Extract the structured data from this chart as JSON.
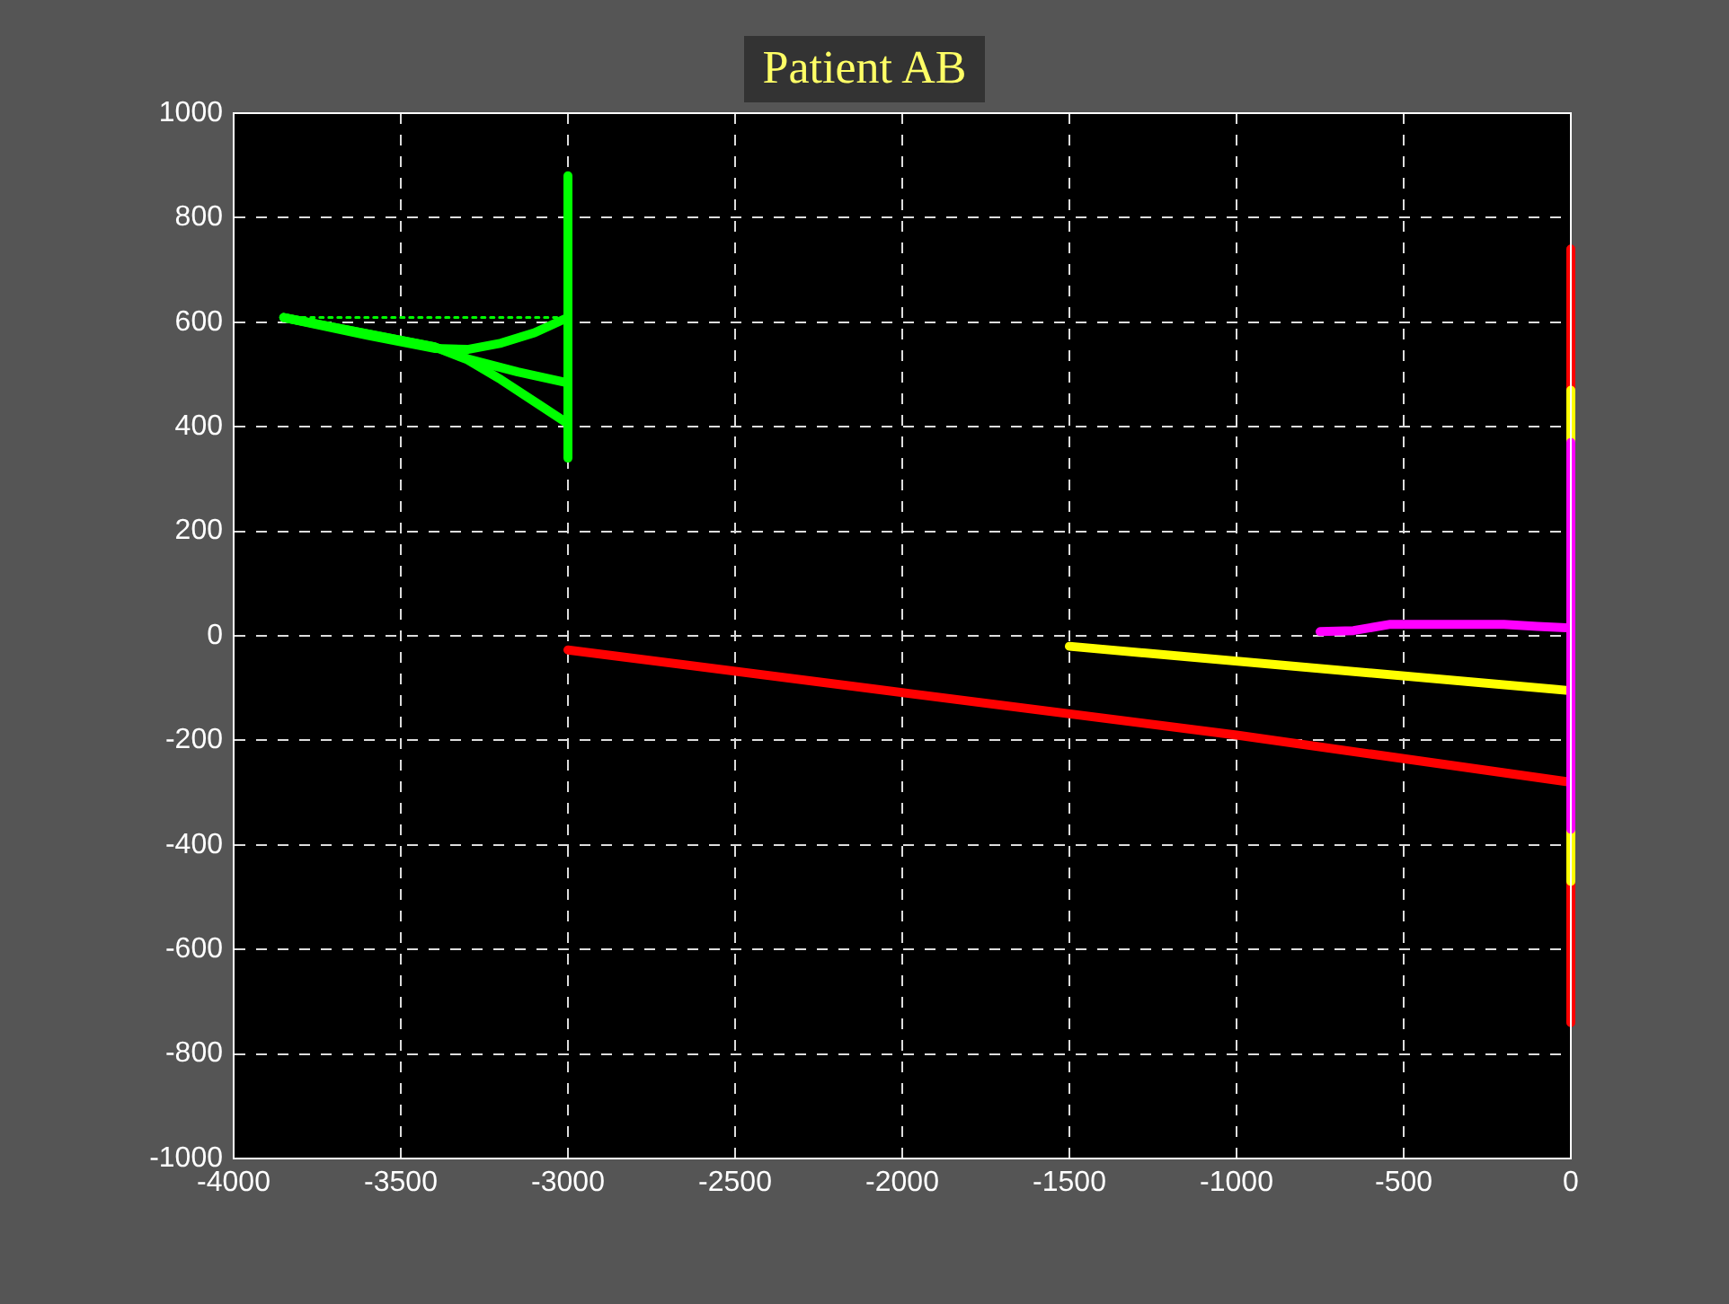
{
  "chart_data": {
    "type": "line",
    "title": "Patient AB",
    "xlim": [
      -4000,
      0
    ],
    "ylim": [
      -1000,
      1000
    ],
    "xticks": [
      -4000,
      -3500,
      -3000,
      -2500,
      -2000,
      -1500,
      -1000,
      -500,
      0
    ],
    "yticks": [
      -1000,
      -800,
      -600,
      -400,
      -200,
      0,
      200,
      400,
      600,
      800,
      1000
    ],
    "grid": true,
    "marker": "none",
    "line_style": "solid",
    "series": [
      {
        "color": "#00ff00",
        "x": [
          -3850,
          -3000
        ],
        "values": [
          609,
          609
        ],
        "line_style": "dotted"
      },
      {
        "color": "#00ff00",
        "x": [
          -3850,
          -3600,
          -3400,
          -3300,
          -3200,
          -3100,
          -3000
        ],
        "values": [
          609,
          575,
          550,
          548,
          560,
          580,
          609
        ]
      },
      {
        "color": "#00ff00",
        "x": [
          -3850,
          -3400,
          -3300,
          -3150,
          -3000
        ],
        "values": [
          609,
          553,
          530,
          505,
          484
        ]
      },
      {
        "color": "#00ff00",
        "x": [
          -3850,
          -3400,
          -3300,
          -3200,
          -3100,
          -3000
        ],
        "values": [
          609,
          553,
          528,
          490,
          448,
          406
        ]
      },
      {
        "color": "#00ff00",
        "x": [
          -3000,
          -3000
        ],
        "values": [
          880,
          340
        ]
      },
      {
        "color": "#ff0000",
        "x": [
          -3000,
          -1000,
          0
        ],
        "values": [
          -27,
          -190,
          -280
        ]
      },
      {
        "color": "#ffff00",
        "x": [
          -1500,
          0
        ],
        "values": [
          -20,
          -105
        ]
      },
      {
        "color": "#ff00ff",
        "x": [
          -750,
          -650,
          -540,
          -200,
          -100,
          0
        ],
        "values": [
          8,
          10,
          22,
          22,
          18,
          15
        ]
      },
      {
        "color": "#ff0000",
        "x": [
          0,
          0,
          null,
          0,
          0
        ],
        "values": [
          740,
          470,
          null,
          -470,
          -740
        ]
      },
      {
        "color": "#ffff00",
        "x": [
          0,
          0,
          null,
          0,
          0
        ],
        "values": [
          470,
          370,
          null,
          -370,
          -470
        ]
      },
      {
        "color": "#ff00ff",
        "x": [
          0,
          0
        ],
        "values": [
          370,
          -370
        ]
      }
    ]
  }
}
